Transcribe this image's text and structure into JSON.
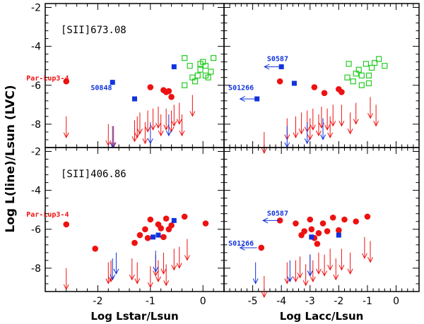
{
  "figure": {
    "ylabel": "Log L(line)/Lsun (LVC)"
  },
  "colors": {
    "detection": "#ee1111",
    "upper_limit_red": "#dd2222",
    "blue_source": "#1133dd",
    "green_source": "#22cc22",
    "frame": "#000000"
  },
  "chart_data": [
    {
      "type": "scatter",
      "panel": "top-left",
      "title": "[SII]673.08",
      "xlabel": "",
      "ylabel": "Log L(line)/Lsun (LVC)",
      "xlim": [
        -3,
        0.4
      ],
      "ylim": [
        -9.2,
        -1.8
      ],
      "xticks": [
        -2,
        -1,
        0
      ],
      "yticks": [
        -2,
        -4,
        -6,
        -8
      ],
      "show_xticklabels": false,
      "show_yticklabels": true,
      "annotations": [
        {
          "text": "Par-Lup3-4",
          "x": -2.55,
          "y": -5.75,
          "color": "red",
          "anchor": "end"
        },
        {
          "text": "S0848",
          "x": -1.73,
          "y": -6.25,
          "color": "blue",
          "anchor": "end"
        }
      ],
      "series": [
        {
          "name": "detections",
          "marker": "filled-circle",
          "color": "red",
          "points": [
            [
              -2.6,
              -5.8
            ],
            [
              -1.0,
              -6.1
            ],
            [
              -0.75,
              -6.25
            ],
            [
              -0.7,
              -6.35
            ],
            [
              -0.65,
              -6.3
            ],
            [
              -0.6,
              -6.6
            ]
          ]
        },
        {
          "name": "upper limits",
          "marker": "arrow-down",
          "color": "red",
          "points": [
            [
              -2.6,
              -7.6
            ],
            [
              -1.8,
              -8.0
            ],
            [
              -1.7,
              -8.1
            ],
            [
              -1.3,
              -7.8
            ],
            [
              -1.25,
              -7.6
            ],
            [
              -1.2,
              -7.4
            ],
            [
              -1.1,
              -7.9
            ],
            [
              -1.05,
              -7.3
            ],
            [
              -0.95,
              -7.2
            ],
            [
              -0.85,
              -7.1
            ],
            [
              -0.8,
              -7.5
            ],
            [
              -0.7,
              -7.2
            ],
            [
              -0.6,
              -7.3
            ],
            [
              -0.55,
              -7.0
            ],
            [
              -0.45,
              -6.9
            ],
            [
              -0.4,
              -7.5
            ],
            [
              -0.2,
              -6.5
            ]
          ]
        },
        {
          "name": "blue detections",
          "marker": "filled-square",
          "color": "blue",
          "points": [
            [
              -1.72,
              -5.85
            ],
            [
              -1.3,
              -6.7
            ],
            [
              -0.55,
              -5.05
            ]
          ]
        },
        {
          "name": "blue upper limits",
          "marker": "arrow-down",
          "color": "blue",
          "points": [
            [
              -1.72,
              -8.1
            ],
            [
              -1.0,
              -7.9
            ],
            [
              -0.65,
              -7.5
            ]
          ]
        },
        {
          "name": "green sources",
          "marker": "open-square",
          "color": "green",
          "points": [
            [
              -0.35,
              -4.6
            ],
            [
              -0.35,
              -6.0
            ],
            [
              -0.25,
              -5.0
            ],
            [
              -0.2,
              -5.6
            ],
            [
              -0.15,
              -5.8
            ],
            [
              -0.1,
              -5.5
            ],
            [
              -0.05,
              -5.2
            ],
            [
              0.0,
              -4.8
            ],
            [
              0.05,
              -5.0
            ],
            [
              0.05,
              -5.5
            ],
            [
              0.1,
              -5.6
            ],
            [
              0.15,
              -5.3
            ],
            [
              0.2,
              -4.6
            ],
            [
              -0.05,
              -4.9
            ]
          ]
        }
      ]
    },
    {
      "type": "scatter",
      "panel": "top-right",
      "title": "",
      "xlabel": "",
      "ylabel": "",
      "xlim": [
        -6,
        0.8
      ],
      "ylim": [
        -9.2,
        -1.8
      ],
      "xticks": [
        -5,
        -4,
        -3,
        -2,
        -1,
        0
      ],
      "yticks": [
        -2,
        -4,
        -6,
        -8
      ],
      "show_xticklabels": false,
      "show_yticklabels": false,
      "annotations": [
        {
          "text": "S0587",
          "x": -4.5,
          "y": -4.75,
          "color": "blue",
          "anchor": "start"
        },
        {
          "text": "S01266",
          "x": -5.85,
          "y": -6.25,
          "color": "blue",
          "anchor": "start"
        }
      ],
      "series": [
        {
          "name": "detections",
          "marker": "filled-circle",
          "color": "red",
          "points": [
            [
              -4.05,
              -5.8
            ],
            [
              -2.85,
              -6.1
            ],
            [
              -2.5,
              -6.4
            ],
            [
              -2.0,
              -6.2
            ],
            [
              -1.9,
              -6.35
            ]
          ]
        },
        {
          "name": "upper limits",
          "marker": "arrow-down",
          "color": "red",
          "points": [
            [
              -4.6,
              -8.4
            ],
            [
              -3.8,
              -7.7
            ],
            [
              -3.5,
              -7.6
            ],
            [
              -3.3,
              -7.4
            ],
            [
              -3.1,
              -7.3
            ],
            [
              -3.0,
              -7.7
            ],
            [
              -2.9,
              -7.2
            ],
            [
              -2.7,
              -7.5
            ],
            [
              -2.6,
              -7.1
            ],
            [
              -2.4,
              -7.2
            ],
            [
              -2.3,
              -7.6
            ],
            [
              -2.2,
              -7.0
            ],
            [
              -1.9,
              -7.0
            ],
            [
              -1.6,
              -7.4
            ],
            [
              -1.4,
              -6.9
            ],
            [
              -0.9,
              -6.6
            ],
            [
              -0.7,
              -7.0
            ]
          ]
        },
        {
          "name": "blue detections",
          "marker": "filled-square",
          "color": "blue",
          "points": [
            [
              -4.0,
              -5.05
            ],
            [
              -3.55,
              -5.9
            ],
            [
              -4.85,
              -6.7
            ]
          ]
        },
        {
          "name": "blue upper limits",
          "marker": "arrow-down",
          "color": "blue",
          "points": [
            [
              -3.8,
              -8.1
            ],
            [
              -3.1,
              -7.9
            ],
            [
              -2.55,
              -7.7
            ]
          ]
        },
        {
          "name": "blue upper limits left",
          "marker": "arrow-left",
          "color": "blue",
          "points": [
            [
              -4.0,
              -5.05
            ],
            [
              -4.85,
              -6.7
            ]
          ]
        },
        {
          "name": "green sources",
          "marker": "open-square",
          "color": "green",
          "points": [
            [
              -1.65,
              -4.9
            ],
            [
              -1.7,
              -5.6
            ],
            [
              -1.5,
              -5.8
            ],
            [
              -1.4,
              -5.4
            ],
            [
              -1.3,
              -5.2
            ],
            [
              -1.2,
              -5.5
            ],
            [
              -1.05,
              -4.9
            ],
            [
              -0.95,
              -5.5
            ],
            [
              -0.85,
              -5.1
            ],
            [
              -0.75,
              -4.85
            ],
            [
              -0.6,
              -4.65
            ],
            [
              -0.4,
              -5.0
            ],
            [
              -1.2,
              -6.0
            ],
            [
              -0.95,
              -5.9
            ]
          ]
        }
      ]
    },
    {
      "type": "scatter",
      "panel": "bottom-left",
      "title": "[SII]406.86",
      "xlabel": "Log Lstar/Lsun",
      "ylabel": "Log L(line)/Lsun (LVC)",
      "xlim": [
        -3,
        0.4
      ],
      "ylim": [
        -9.2,
        -1.8
      ],
      "xticks": [
        -2,
        -1,
        0
      ],
      "yticks": [
        -2,
        -4,
        -6,
        -8
      ],
      "show_xticklabels": true,
      "show_yticklabels": true,
      "annotations": [
        {
          "text": "Par-Lup3-4",
          "x": -2.55,
          "y": -5.35,
          "color": "red",
          "anchor": "end"
        }
      ],
      "series": [
        {
          "name": "detections",
          "marker": "filled-circle",
          "color": "red",
          "points": [
            [
              -2.6,
              -5.75
            ],
            [
              -2.05,
              -7.0
            ],
            [
              -1.3,
              -6.7
            ],
            [
              -1.2,
              -6.3
            ],
            [
              -1.1,
              -6.0
            ],
            [
              -1.05,
              -6.45
            ],
            [
              -1.0,
              -5.5
            ],
            [
              -0.85,
              -5.75
            ],
            [
              -0.8,
              -5.95
            ],
            [
              -0.75,
              -6.4
            ],
            [
              -0.7,
              -5.45
            ],
            [
              -0.65,
              -6.0
            ],
            [
              -0.6,
              -5.8
            ],
            [
              -0.35,
              -5.35
            ],
            [
              0.05,
              -5.7
            ]
          ]
        },
        {
          "name": "upper limits",
          "marker": "arrow-down",
          "color": "red",
          "points": [
            [
              -2.6,
              -8.0
            ],
            [
              -1.8,
              -7.7
            ],
            [
              -1.75,
              -7.6
            ],
            [
              -1.35,
              -7.5
            ],
            [
              -1.25,
              -7.7
            ],
            [
              -1.0,
              -7.9
            ],
            [
              -0.9,
              -7.3
            ],
            [
              -0.85,
              -7.6
            ],
            [
              -0.75,
              -7.2
            ],
            [
              -0.7,
              -7.8
            ],
            [
              -0.55,
              -7.0
            ],
            [
              -0.45,
              -6.9
            ],
            [
              -0.3,
              -6.5
            ]
          ]
        },
        {
          "name": "blue detections",
          "marker": "filled-square",
          "color": "blue",
          "points": [
            [
              -0.95,
              -6.4
            ],
            [
              -0.85,
              -6.3
            ],
            [
              -0.55,
              -5.55
            ]
          ]
        },
        {
          "name": "blue upper limits",
          "marker": "arrow-down",
          "color": "blue",
          "points": [
            [
              -1.72,
              -7.5
            ],
            [
              -1.65,
              -7.2
            ],
            [
              -0.9,
              -7.1
            ]
          ]
        }
      ]
    },
    {
      "type": "scatter",
      "panel": "bottom-right",
      "title": "",
      "xlabel": "Log Lacc/Lsun",
      "ylabel": "",
      "xlim": [
        -6,
        0.8
      ],
      "ylim": [
        -9.2,
        -1.8
      ],
      "xticks": [
        -5,
        -4,
        -3,
        -2,
        -1,
        0
      ],
      "yticks": [
        -2,
        -4,
        -6,
        -8
      ],
      "show_xticklabels": true,
      "show_yticklabels": false,
      "annotations": [
        {
          "text": "S0587",
          "x": -4.5,
          "y": -5.3,
          "color": "blue",
          "anchor": "start"
        },
        {
          "text": "S01266",
          "x": -5.85,
          "y": -6.85,
          "color": "blue",
          "anchor": "start"
        }
      ],
      "series": [
        {
          "name": "detections",
          "marker": "filled-circle",
          "color": "red",
          "points": [
            [
              -4.05,
              -5.55
            ],
            [
              -4.7,
              -6.95
            ],
            [
              -3.5,
              -5.7
            ],
            [
              -3.3,
              -6.3
            ],
            [
              -3.2,
              -6.1
            ],
            [
              -3.0,
              -5.5
            ],
            [
              -2.95,
              -6.0
            ],
            [
              -2.85,
              -6.45
            ],
            [
              -2.7,
              -6.2
            ],
            [
              -2.55,
              -5.7
            ],
            [
              -2.4,
              -6.1
            ],
            [
              -2.2,
              -5.4
            ],
            [
              -2.0,
              -6.05
            ],
            [
              -1.8,
              -5.5
            ],
            [
              -1.4,
              -5.6
            ],
            [
              -1.0,
              -5.35
            ],
            [
              -2.75,
              -6.75
            ]
          ]
        },
        {
          "name": "upper limits",
          "marker": "arrow-down",
          "color": "red",
          "points": [
            [
              -4.6,
              -8.4
            ],
            [
              -3.8,
              -7.7
            ],
            [
              -3.5,
              -7.6
            ],
            [
              -3.35,
              -7.4
            ],
            [
              -3.15,
              -7.8
            ],
            [
              -3.0,
              -7.3
            ],
            [
              -2.9,
              -7.6
            ],
            [
              -2.7,
              -7.2
            ],
            [
              -2.5,
              -7.3
            ],
            [
              -2.3,
              -7.0
            ],
            [
              -2.1,
              -7.5
            ],
            [
              -1.9,
              -7.0
            ],
            [
              -1.6,
              -7.2
            ],
            [
              -1.1,
              -6.4
            ],
            [
              -0.9,
              -6.6
            ]
          ]
        },
        {
          "name": "blue detections",
          "marker": "filled-square",
          "color": "blue",
          "points": [
            [
              -2.95,
              -6.4
            ],
            [
              -2.0,
              -6.3
            ]
          ]
        },
        {
          "name": "blue upper limits",
          "marker": "arrow-down",
          "color": "blue",
          "points": [
            [
              -4.9,
              -7.7
            ],
            [
              -3.7,
              -7.6
            ],
            [
              -3.0,
              -7.3
            ]
          ]
        },
        {
          "name": "blue upper limits left",
          "marker": "arrow-left",
          "color": "blue",
          "points": [
            [
              -4.05,
              -5.55
            ],
            [
              -4.85,
              -6.95
            ]
          ]
        }
      ]
    }
  ]
}
